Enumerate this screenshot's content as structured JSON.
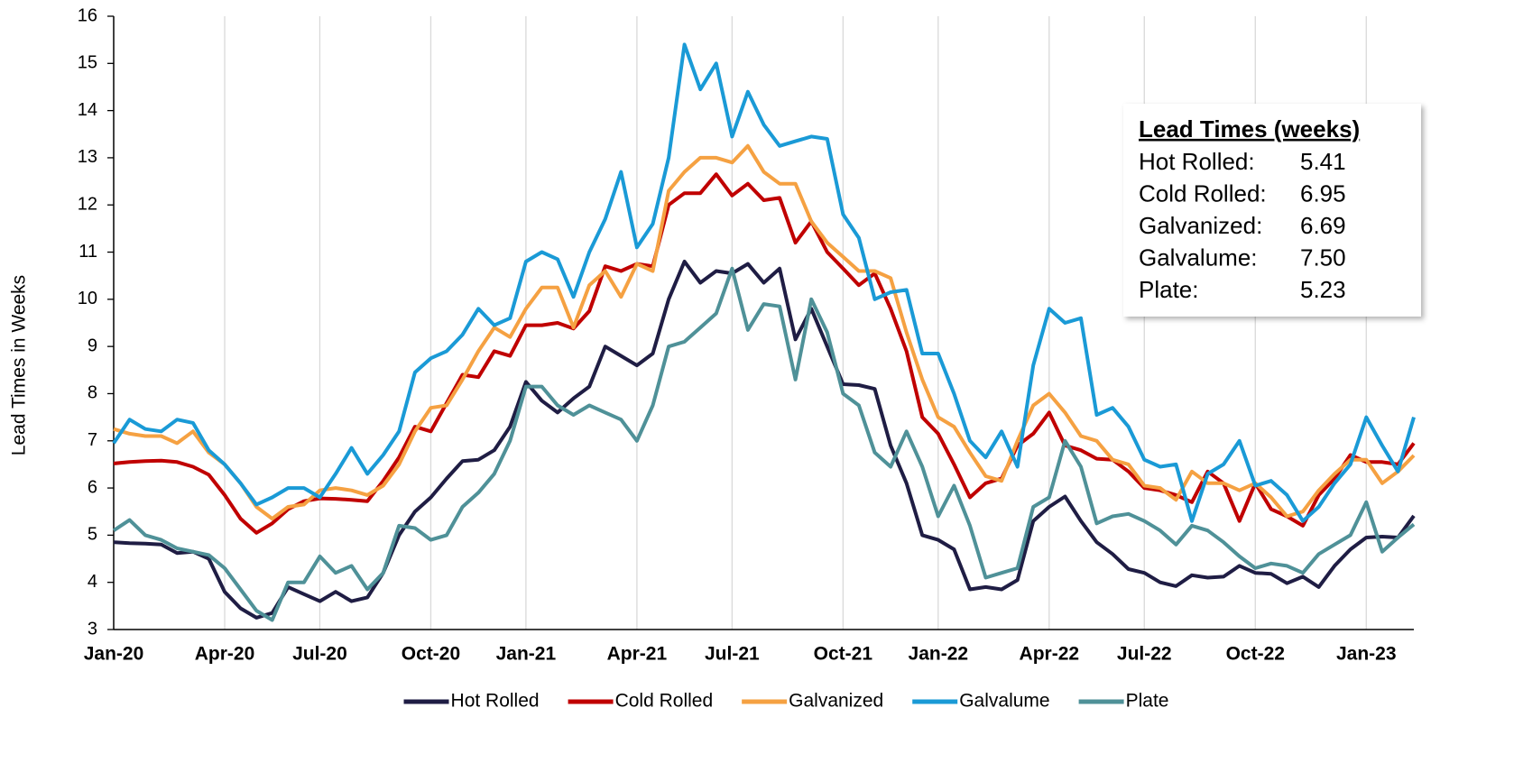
{
  "chart_data": {
    "type": "line",
    "y_label": "Lead Times in Weeks",
    "categories": [
      "Jan-20",
      null,
      null,
      null,
      null,
      null,
      null,
      "Apr-20",
      null,
      null,
      null,
      null,
      null,
      "Jul-20",
      null,
      null,
      null,
      null,
      null,
      null,
      "Oct-20",
      null,
      null,
      null,
      null,
      null,
      "Jan-21",
      null,
      null,
      null,
      null,
      null,
      null,
      "Apr-21",
      null,
      null,
      null,
      null,
      null,
      "Jul-21",
      null,
      null,
      null,
      null,
      null,
      null,
      "Oct-21",
      null,
      null,
      null,
      null,
      null,
      "Jan-22",
      null,
      null,
      null,
      null,
      null,
      null,
      "Apr-22",
      null,
      null,
      null,
      null,
      null,
      "Jul-22",
      null,
      null,
      null,
      null,
      null,
      null,
      "Oct-22",
      null,
      null,
      null,
      null,
      null,
      null,
      "Jan-23",
      null,
      null,
      null
    ],
    "series": [
      {
        "name": "Hot Rolled",
        "color": "#1f1d44",
        "values": [
          4.85,
          4.83,
          4.82,
          4.8,
          4.62,
          4.65,
          4.5,
          3.8,
          3.45,
          3.25,
          3.35,
          3.9,
          3.75,
          3.6,
          3.8,
          3.6,
          3.68,
          4.2,
          5.0,
          5.5,
          5.8,
          6.2,
          6.57,
          6.6,
          6.8,
          7.3,
          8.25,
          7.85,
          7.6,
          7.9,
          8.15,
          9.0,
          8.8,
          8.6,
          8.85,
          10.0,
          10.8,
          10.35,
          10.6,
          10.55,
          10.75,
          10.35,
          10.65,
          9.15,
          9.8,
          9.0,
          8.2,
          8.18,
          8.1,
          6.9,
          6.1,
          5.0,
          4.9,
          4.7,
          3.85,
          3.9,
          3.85,
          4.05,
          5.3,
          5.6,
          5.82,
          5.3,
          4.85,
          4.6,
          4.28,
          4.2,
          4.0,
          3.92,
          4.15,
          4.1,
          4.12,
          4.35,
          4.2,
          4.18,
          3.98,
          4.12,
          3.9,
          4.35,
          4.7,
          4.95,
          4.97,
          4.95,
          5.41
        ]
      },
      {
        "name": "Cold Rolled",
        "color": "#c00000",
        "values": [
          6.52,
          6.55,
          6.57,
          6.58,
          6.55,
          6.45,
          6.28,
          5.85,
          5.35,
          5.05,
          5.25,
          5.55,
          5.72,
          5.78,
          5.77,
          5.75,
          5.72,
          6.15,
          6.65,
          7.3,
          7.2,
          7.8,
          8.4,
          8.35,
          8.9,
          8.8,
          9.45,
          9.45,
          9.5,
          9.38,
          9.75,
          10.7,
          10.6,
          10.75,
          10.7,
          12.0,
          12.25,
          12.25,
          12.65,
          12.2,
          12.45,
          12.1,
          12.15,
          11.2,
          11.65,
          11.0,
          10.65,
          10.3,
          10.55,
          9.8,
          8.9,
          7.5,
          7.15,
          6.5,
          5.8,
          6.1,
          6.2,
          6.9,
          7.15,
          7.6,
          6.9,
          6.8,
          6.62,
          6.6,
          6.35,
          6.0,
          5.95,
          5.85,
          5.7,
          6.35,
          6.1,
          5.3,
          6.1,
          5.55,
          5.4,
          5.2,
          5.85,
          6.2,
          6.7,
          6.55,
          6.55,
          6.5,
          6.95
        ]
      },
      {
        "name": "Galvanized",
        "color": "#f5a142",
        "values": [
          7.25,
          7.15,
          7.1,
          7.1,
          6.95,
          7.2,
          6.75,
          6.5,
          6.1,
          5.6,
          5.35,
          5.6,
          5.65,
          5.95,
          6.0,
          5.95,
          5.85,
          6.05,
          6.5,
          7.2,
          7.7,
          7.75,
          8.3,
          8.9,
          9.4,
          9.2,
          9.8,
          10.25,
          10.25,
          9.4,
          10.3,
          10.6,
          10.05,
          10.75,
          10.6,
          12.3,
          12.7,
          13.0,
          13.0,
          12.9,
          13.25,
          12.7,
          12.45,
          12.45,
          11.65,
          11.2,
          10.9,
          10.6,
          10.6,
          10.45,
          9.3,
          8.3,
          7.5,
          7.3,
          6.75,
          6.25,
          6.15,
          7.0,
          7.75,
          8.0,
          7.6,
          7.1,
          7.0,
          6.6,
          6.5,
          6.05,
          6.0,
          5.75,
          6.35,
          6.1,
          6.1,
          5.95,
          6.1,
          5.8,
          5.4,
          5.5,
          5.95,
          6.3,
          6.6,
          6.6,
          6.1,
          6.35,
          6.69
        ]
      },
      {
        "name": "Galvalume",
        "color": "#1a9ad6",
        "values": [
          6.95,
          7.45,
          7.25,
          7.2,
          7.45,
          7.38,
          6.8,
          6.5,
          6.1,
          5.65,
          5.8,
          6.0,
          6.0,
          5.8,
          6.3,
          6.85,
          6.3,
          6.7,
          7.2,
          8.45,
          8.75,
          8.9,
          9.25,
          9.8,
          9.45,
          9.6,
          10.8,
          11.0,
          10.85,
          10.05,
          11.0,
          11.7,
          12.7,
          11.1,
          11.6,
          13.0,
          15.4,
          14.45,
          15.0,
          13.45,
          14.4,
          13.7,
          13.25,
          13.35,
          13.45,
          13.4,
          11.8,
          11.3,
          10.0,
          10.15,
          10.2,
          8.85,
          8.85,
          8.0,
          7.0,
          6.65,
          7.2,
          6.45,
          8.6,
          9.8,
          9.5,
          9.6,
          7.55,
          7.7,
          7.3,
          6.6,
          6.45,
          6.5,
          5.3,
          6.3,
          6.5,
          7.0,
          6.05,
          6.15,
          5.85,
          5.3,
          5.6,
          6.1,
          6.5,
          7.5,
          6.9,
          6.35,
          7.5
        ]
      },
      {
        "name": "Plate",
        "color": "#4f9198",
        "values": [
          5.1,
          5.32,
          5.0,
          4.9,
          4.72,
          4.65,
          4.58,
          4.3,
          3.85,
          3.4,
          3.2,
          4.0,
          4.0,
          4.55,
          4.2,
          4.35,
          3.85,
          4.2,
          5.2,
          5.15,
          4.9,
          5.0,
          5.6,
          5.9,
          6.3,
          7.0,
          8.15,
          8.15,
          7.75,
          7.55,
          7.75,
          7.6,
          7.45,
          7.0,
          7.75,
          9.0,
          9.1,
          9.4,
          9.7,
          10.65,
          9.35,
          9.9,
          9.85,
          8.3,
          10.0,
          9.3,
          8.0,
          7.75,
          6.75,
          6.45,
          7.2,
          6.45,
          5.4,
          6.05,
          5.2,
          4.1,
          4.2,
          4.3,
          5.6,
          5.8,
          7.0,
          6.45,
          5.25,
          5.4,
          5.45,
          5.3,
          5.1,
          4.8,
          5.2,
          5.1,
          4.85,
          4.55,
          4.3,
          4.4,
          4.35,
          4.2,
          4.6,
          4.8,
          5.0,
          5.7,
          4.65,
          4.95,
          5.23
        ]
      }
    ],
    "ylim": [
      3,
      16
    ],
    "yticks": [
      3,
      4,
      5,
      6,
      7,
      8,
      9,
      10,
      11,
      12,
      13,
      14,
      15,
      16
    ],
    "grid": true,
    "legend": "bottom",
    "annotation": {
      "title": "Lead Times (weeks)",
      "rows": [
        {
          "label": "Hot Rolled:",
          "value": "5.41",
          "color": "#1f1d44"
        },
        {
          "label": "Cold Rolled:",
          "value": "6.95",
          "color": "#c00000"
        },
        {
          "label": "Galvanized:",
          "value": "6.69",
          "color": "#f5a142"
        },
        {
          "label": "Galvalume:",
          "value": "7.50",
          "color": "#1a9ad6"
        },
        {
          "label": "Plate:",
          "value": "5.23",
          "color": "#4f9198"
        }
      ]
    }
  }
}
